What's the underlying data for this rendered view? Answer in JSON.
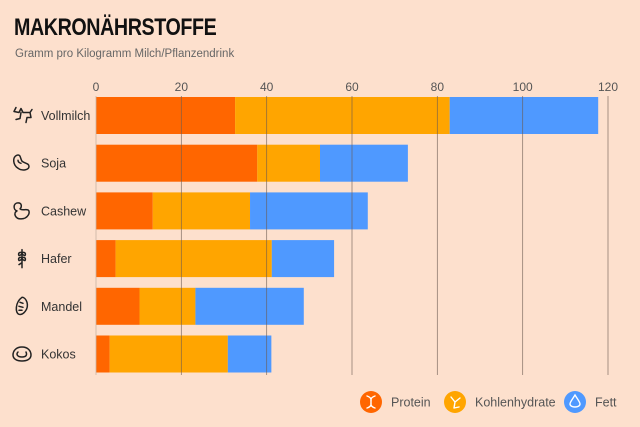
{
  "header": {
    "title": "MAKRONÄHRSTOFFE",
    "subtitle": "Gramm pro Kilogramm Milch/Pflanzendrink"
  },
  "chart_data": {
    "type": "bar",
    "orientation": "horizontal",
    "stacked": true,
    "title": "MAKRONÄHRSTOFFE",
    "subtitle": "Gramm pro Kilogramm Milch/Pflanzendrink",
    "xlabel": "",
    "ylabel": "",
    "xlim": [
      0,
      120
    ],
    "xticks": [
      0,
      20,
      40,
      60,
      80,
      100,
      120
    ],
    "xaxis_position": "top",
    "grid": "vertical",
    "legend_position": "bottom-right",
    "categories": [
      "Vollmilch",
      "Soja",
      "Cashew",
      "Hafer",
      "Mandel",
      "Kokos"
    ],
    "category_icons": [
      "cow-icon",
      "soybean-icon",
      "cashew-icon",
      "wheat-icon",
      "almond-icon",
      "coconut-icon"
    ],
    "series": [
      {
        "name": "Protein",
        "color": "#ff6600",
        "icon": "dna-icon",
        "values": [
          32.6,
          37.8,
          13.3,
          4.6,
          10.2,
          3.2
        ]
      },
      {
        "name": "Kohlenhydrate",
        "color": "#ffa500",
        "icon": "molecule-icon",
        "values": [
          50.3,
          14.7,
          22.8,
          36.6,
          13.1,
          27.7
        ]
      },
      {
        "name": "Fett",
        "color": "#4f99ff",
        "icon": "drop-icon",
        "values": [
          34.8,
          20.6,
          27.6,
          14.6,
          25.4,
          10.2
        ]
      }
    ]
  }
}
